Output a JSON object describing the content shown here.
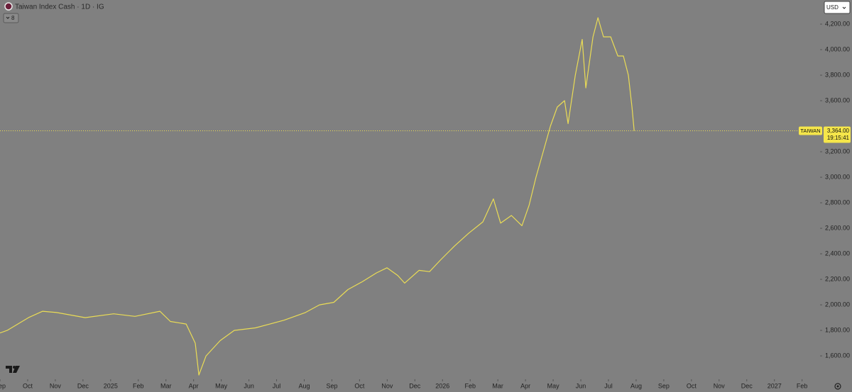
{
  "chart_data": {
    "type": "line",
    "title": "Taiwan Index Cash · 1D · IG",
    "collapse_badge": "8",
    "currency": "USD",
    "countdown": "19:15:41",
    "last_price": {
      "value": 3364,
      "label": "3,364.00"
    },
    "series": [
      {
        "name": "TAIWAN",
        "color": "#eadc55",
        "x": [
          0,
          0.26,
          1.03,
          1.54,
          2.05,
          3.08,
          4.11,
          4.88,
          5.78,
          6.16,
          6.73,
          7.06,
          7.19,
          7.45,
          7.96,
          8.47,
          9.24,
          9.76,
          10.27,
          11.04,
          11.55,
          12.07,
          12.58,
          13.09,
          13.61,
          13.99,
          14.38,
          14.63,
          15.15,
          15.53,
          15.92,
          16.43,
          16.94,
          17.46,
          17.84,
          18.1,
          18.49,
          18.87,
          19.13,
          19.38,
          19.64,
          19.9,
          20.15,
          20.41,
          20.54,
          20.8,
          21.05,
          21.18,
          21.44,
          21.62,
          21.82,
          22.08,
          22.34,
          22.54,
          22.72,
          22.85,
          22.93
        ],
        "values": [
          1780,
          1800,
          1900,
          1950,
          1940,
          1900,
          1930,
          1910,
          1950,
          1870,
          1850,
          1700,
          1450,
          1600,
          1720,
          1800,
          1820,
          1850,
          1880,
          1940,
          2000,
          2020,
          2120,
          2180,
          2250,
          2290,
          2230,
          2170,
          2270,
          2260,
          2350,
          2460,
          2560,
          2650,
          2830,
          2640,
          2700,
          2620,
          2780,
          3000,
          3200,
          3400,
          3550,
          3600,
          3420,
          3800,
          4080,
          3700,
          4100,
          4250,
          4100,
          4100,
          3950,
          3950,
          3800,
          3550,
          3364
        ]
      }
    ],
    "xlim": [
      0,
      29.65
    ],
    "xticks": [
      {
        "value": 0,
        "label": "Sep"
      },
      {
        "value": 1,
        "label": "Oct"
      },
      {
        "value": 2,
        "label": "Nov"
      },
      {
        "value": 3,
        "label": "Dec"
      },
      {
        "value": 4,
        "label": "2025"
      },
      {
        "value": 5,
        "label": "Feb"
      },
      {
        "value": 6,
        "label": "Mar"
      },
      {
        "value": 7,
        "label": "Apr"
      },
      {
        "value": 8,
        "label": "May"
      },
      {
        "value": 9,
        "label": "Jun"
      },
      {
        "value": 10,
        "label": "Jul"
      },
      {
        "value": 11,
        "label": "Aug"
      },
      {
        "value": 12,
        "label": "Sep"
      },
      {
        "value": 13,
        "label": "Oct"
      },
      {
        "value": 14,
        "label": "Nov"
      },
      {
        "value": 15,
        "label": "Dec"
      },
      {
        "value": 16,
        "label": "2026"
      },
      {
        "value": 17,
        "label": "Feb"
      },
      {
        "value": 18,
        "label": "Mar"
      },
      {
        "value": 19,
        "label": "Apr"
      },
      {
        "value": 20,
        "label": "May"
      },
      {
        "value": 21,
        "label": "Jun"
      },
      {
        "value": 22,
        "label": "Jul"
      },
      {
        "value": 23,
        "label": "Aug"
      },
      {
        "value": 24,
        "label": "Sep"
      },
      {
        "value": 25,
        "label": "Oct"
      },
      {
        "value": 26,
        "label": "Nov"
      },
      {
        "value": 27,
        "label": "Dec"
      },
      {
        "value": 28,
        "label": "2027"
      },
      {
        "value": 29,
        "label": "Feb"
      }
    ],
    "ylim": [
      1417,
      4389
    ],
    "yticks": [
      {
        "value": 1600,
        "label": "1,600.00"
      },
      {
        "value": 1800,
        "label": "1,800.00"
      },
      {
        "value": 2000,
        "label": "2,000.00"
      },
      {
        "value": 2200,
        "label": "2,200.00"
      },
      {
        "value": 2400,
        "label": "2,400.00"
      },
      {
        "value": 2600,
        "label": "2,600.00"
      },
      {
        "value": 2800,
        "label": "2,800.00"
      },
      {
        "value": 3000,
        "label": "3,000.00"
      },
      {
        "value": 3200,
        "label": "3,200.00"
      },
      {
        "value": 3600,
        "label": "3,600.00"
      },
      {
        "value": 3800,
        "label": "3,800.00"
      },
      {
        "value": 4000,
        "label": "4,000.00"
      },
      {
        "value": 4200,
        "label": "4,200.00"
      }
    ]
  }
}
